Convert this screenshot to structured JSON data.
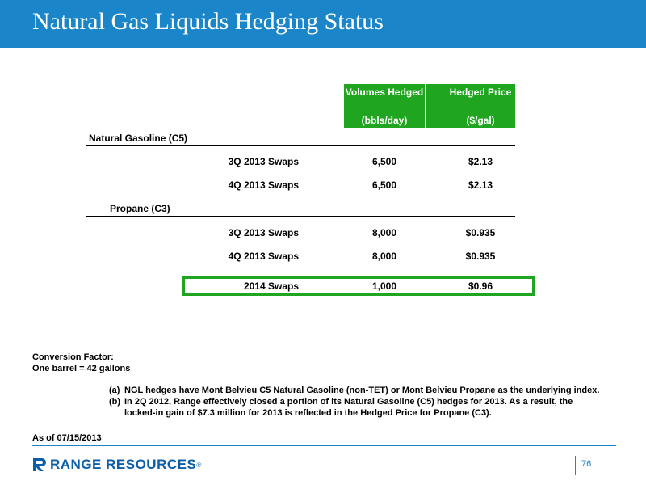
{
  "title": "Natural Gas Liquids Hedging Status",
  "columns": {
    "volumes_header": "Volumes Hedged",
    "volumes_unit": "(bbls/day)",
    "price_header": "Hedged Price",
    "price_unit": "($/gal)"
  },
  "sections": [
    {
      "label": "Natural Gasoline (C5)",
      "rows": [
        {
          "label": "3Q 2013 Swaps",
          "volume": "6,500",
          "price": "$2.13"
        },
        {
          "label": "4Q 2013 Swaps",
          "volume": "6,500",
          "price": "$2.13"
        }
      ]
    },
    {
      "label": "Propane (C3)",
      "rows": [
        {
          "label": "3Q 2013 Swaps",
          "volume": "8,000",
          "price": "$0.935"
        },
        {
          "label": "4Q 2013 Swaps",
          "volume": "8,000",
          "price": "$0.935"
        }
      ]
    }
  ],
  "highlight_row": {
    "label": "2014 Swaps",
    "volume": "1,000",
    "price": "$0.96"
  },
  "conversion": {
    "line1": "Conversion Factor:",
    "line2": "One barrel = 42 gallons"
  },
  "notes": [
    {
      "marker": "(a)",
      "text": "NGL hedges have Mont Belvieu C5 Natural Gasoline (non-TET) or Mont Belvieu Propane as the underlying index."
    },
    {
      "marker": "(b)",
      "text": "In 2Q 2012, Range effectively closed a portion of its Natural Gasoline (C5) hedges for 2013. As a result, the locked-in gain of $7.3 million for 2013 is reflected in the Hedged Price for Propane (C3)."
    }
  ],
  "as_of": "As of 07/15/2013",
  "footer": {
    "logo_text": "RANGE RESOURCES",
    "logo_reg": "®",
    "page_number": "76"
  },
  "colors": {
    "header_blue": "#1a85c8",
    "table_green": "#1fa51f",
    "logo_blue": "#0b5ea8"
  }
}
